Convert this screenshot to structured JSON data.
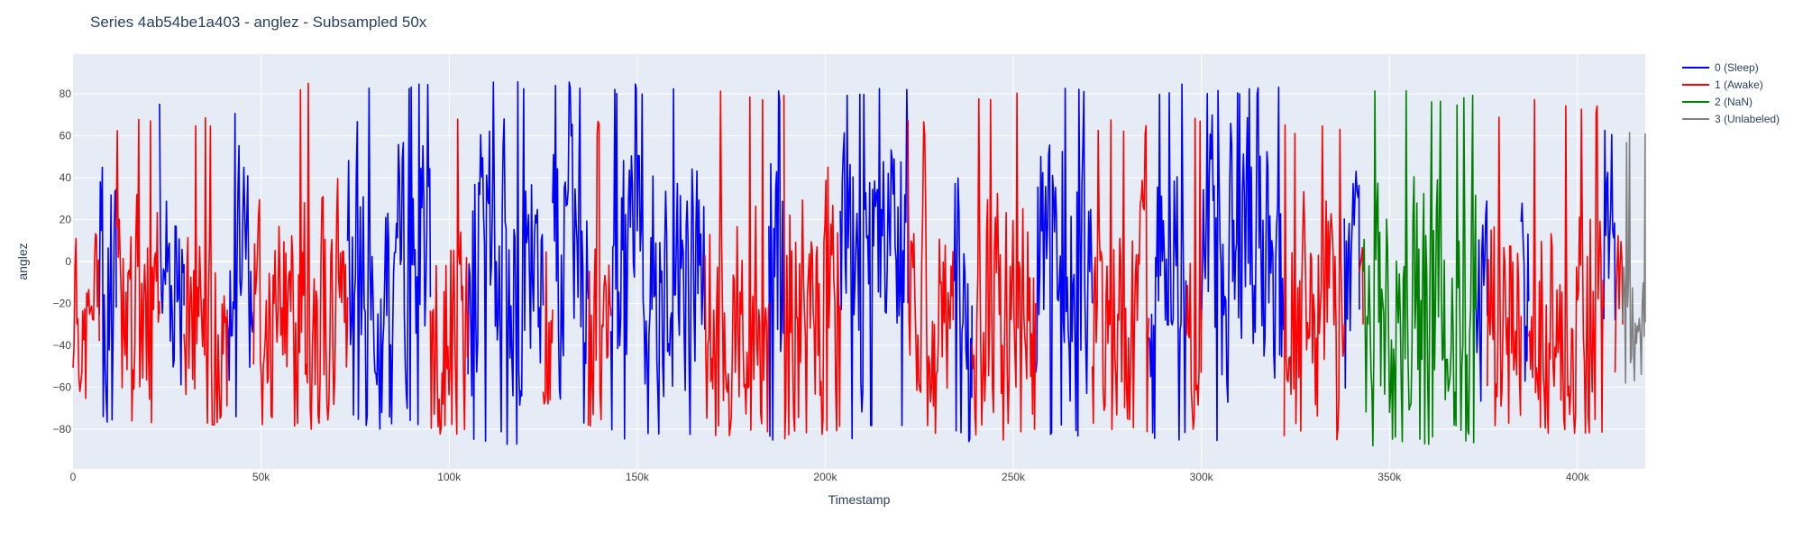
{
  "chart_data": {
    "type": "line",
    "title": "Series 4ab54be1a403 - anglez - Subsampled 50x",
    "xlabel": "Timestamp",
    "ylabel": "anglez",
    "xlim": [
      0,
      418000
    ],
    "ylim": [
      -99,
      99
    ],
    "x_ticks": [
      {
        "value": 0,
        "label": "0"
      },
      {
        "value": 50000,
        "label": "50k"
      },
      {
        "value": 100000,
        "label": "100k"
      },
      {
        "value": 150000,
        "label": "150k"
      },
      {
        "value": 200000,
        "label": "200k"
      },
      {
        "value": 250000,
        "label": "250k"
      },
      {
        "value": 300000,
        "label": "300k"
      },
      {
        "value": 350000,
        "label": "350k"
      },
      {
        "value": 400000,
        "label": "400k"
      }
    ],
    "y_ticks": [
      {
        "value": 80,
        "label": "80"
      },
      {
        "value": 60,
        "label": "60"
      },
      {
        "value": 40,
        "label": "40"
      },
      {
        "value": 20,
        "label": "20"
      },
      {
        "value": 0,
        "label": "0"
      },
      {
        "value": -20,
        "label": "−20"
      },
      {
        "value": -40,
        "label": "−40"
      },
      {
        "value": -60,
        "label": "−60"
      },
      {
        "value": -80,
        "label": "−80"
      }
    ],
    "grid": true,
    "legend_position": "top-right",
    "series": [
      {
        "name": "0 (Sleep)",
        "color": "#0000ff",
        "segments": [
          [
            7000,
            11500
          ],
          [
            23000,
            29500
          ],
          [
            41000,
            48000
          ],
          [
            73000,
            95000
          ],
          [
            105000,
            125000
          ],
          [
            127500,
            137000
          ],
          [
            143000,
            168000
          ],
          [
            185000,
            189000
          ],
          [
            204000,
            222000
          ],
          [
            234000,
            239000
          ],
          [
            256000,
            271000
          ],
          [
            286000,
            296000
          ],
          [
            300000,
            322000
          ],
          [
            338000,
            342000
          ],
          [
            373000,
            376000
          ],
          [
            385000,
            387000
          ],
          [
            407000,
            410000
          ]
        ],
        "peaks": [
          78,
          78,
          74,
          86,
          86,
          86,
          86,
          84,
          86,
          84,
          86,
          86,
          86,
          62,
          60,
          66,
          64
        ],
        "troughs": [
          -82,
          -80,
          -82,
          -80,
          -88,
          -82,
          -86,
          -86,
          -86,
          -86,
          -86,
          -86,
          -88,
          -68,
          -72,
          -64,
          -80
        ]
      },
      {
        "name": "1 (Awake)",
        "color": "#ff0000",
        "segments": [
          [
            0,
            7000
          ],
          [
            11500,
            23000
          ],
          [
            29500,
            41000
          ],
          [
            48000,
            73000
          ],
          [
            95000,
            105000
          ],
          [
            125000,
            127500
          ],
          [
            137000,
            143000
          ],
          [
            168000,
            185000
          ],
          [
            189000,
            204000
          ],
          [
            222000,
            234000
          ],
          [
            239000,
            256000
          ],
          [
            271000,
            286000
          ],
          [
            296000,
            300000
          ],
          [
            322000,
            338000
          ],
          [
            342000,
            343000
          ],
          [
            376000,
            385000
          ],
          [
            387000,
            407000
          ],
          [
            410000,
            412000
          ]
        ],
        "peaks": [
          30,
          68,
          72,
          86,
          74,
          80,
          68,
          84,
          84,
          68,
          82,
          68,
          74,
          68,
          40,
          72,
          78,
          40
        ],
        "troughs": [
          -66,
          -78,
          -78,
          -80,
          -84,
          -86,
          -80,
          -84,
          -86,
          -84,
          -86,
          -82,
          -80,
          -88,
          -60,
          -84,
          -82,
          -60
        ]
      },
      {
        "name": "2 (NaN)",
        "color": "#008000",
        "segments": [
          [
            343000,
            373000
          ]
        ],
        "peaks": [
          82
        ],
        "troughs": [
          -88
        ]
      },
      {
        "name": "3 (Unlabeled)",
        "color": "#808080",
        "segments": [
          [
            412000,
            418000
          ]
        ],
        "peaks": [
          62
        ],
        "troughs": [
          -80
        ]
      }
    ]
  }
}
